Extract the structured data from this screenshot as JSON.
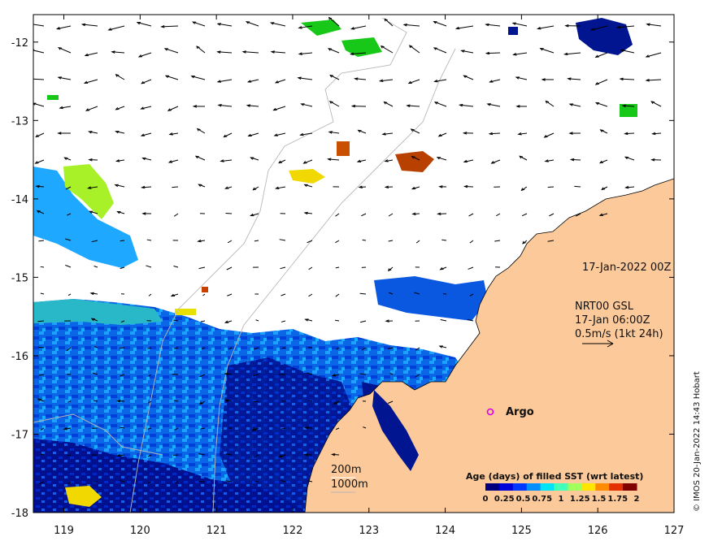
{
  "map": {
    "lon_range": [
      118.6,
      127
    ],
    "lat_range": [
      -18,
      -11.65
    ],
    "x_ticks": [
      "119",
      "120",
      "121",
      "122",
      "123",
      "124",
      "125",
      "126",
      "127"
    ],
    "y_ticks": [
      "-12",
      "-13",
      "-14",
      "-15",
      "-16",
      "-17",
      "-18"
    ],
    "land_color": "#fbc99a",
    "no_data_color": "#ffffff"
  },
  "annotations": {
    "date_label": "17-Jan-2022 00Z",
    "current_title": "NRT00 GSL",
    "current_time": "17-Jan 06:00Z",
    "current_scale": "0.5m/s (1kt 24h)",
    "argo_label": "Argo",
    "contour_200": "200m",
    "contour_1000": "1000m"
  },
  "legend": {
    "title": "Age (days) of filled SST (wrt latest)",
    "tick_labels": [
      "0",
      "0.25",
      "0.5",
      "0.75",
      "1",
      "1.25",
      "1.5",
      "1.75",
      "2"
    ],
    "colors": [
      "#00007f",
      "#0000d8",
      "#0038ff",
      "#0090ff",
      "#00e4f8",
      "#40ffb8",
      "#a0ff5c",
      "#ffe600",
      "#ff8c00",
      "#e43000",
      "#800000"
    ]
  },
  "credit": "© IMOS 20-Jan-2022 14:43 Hobart"
}
